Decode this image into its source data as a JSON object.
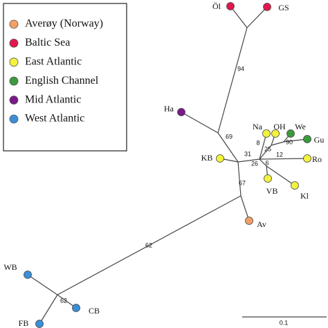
{
  "legend": [
    {
      "label": "Averøy (Norway)",
      "color": "#f2a066"
    },
    {
      "label": "Baltic Sea",
      "color": "#e3174d"
    },
    {
      "label": "East Atlantic",
      "color": "#f3f33c"
    },
    {
      "label": "English Channel",
      "color": "#3b9b3b"
    },
    {
      "label": "Mid Atlantic",
      "color": "#7a1a8a"
    },
    {
      "label": "West Atlantic",
      "color": "#3a8fd8"
    }
  ],
  "nodes": [
    {
      "label": "Öl",
      "color": "#e3174d"
    },
    {
      "label": "GS",
      "color": "#e3174d"
    },
    {
      "label": "Ha",
      "color": "#7a1a8a"
    },
    {
      "label": "KB",
      "color": "#f3f33c"
    },
    {
      "label": "Na",
      "color": "#f3f33c"
    },
    {
      "label": "OH",
      "color": "#f3f33c"
    },
    {
      "label": "We",
      "color": "#3b9b3b"
    },
    {
      "label": "Gu",
      "color": "#3b9b3b"
    },
    {
      "label": "Ro",
      "color": "#f3f33c"
    },
    {
      "label": "VB",
      "color": "#f3f33c"
    },
    {
      "label": "Kl",
      "color": "#f3f33c"
    },
    {
      "label": "Av",
      "color": "#f2a066"
    },
    {
      "label": "WB",
      "color": "#3a8fd8"
    },
    {
      "label": "CB",
      "color": "#3a8fd8"
    },
    {
      "label": "FB",
      "color": "#3a8fd8"
    }
  ],
  "branch_labels": [
    94,
    69,
    31,
    26,
    6,
    8,
    25,
    90,
    12,
    67,
    62,
    62
  ],
  "scale_bar": {
    "label": "0.1"
  }
}
